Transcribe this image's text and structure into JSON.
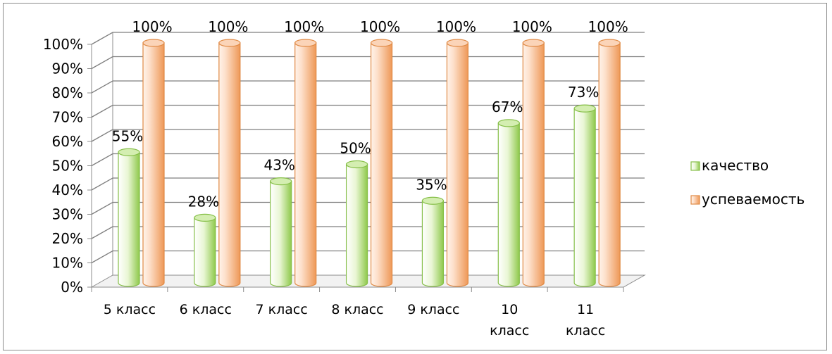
{
  "chart_data": {
    "type": "bar",
    "categories": [
      "5 класс",
      "6 класс",
      "7 класс",
      "8 класс",
      "9 класс",
      "10 класс",
      "11 класс"
    ],
    "category_lines": [
      [
        "5 класс"
      ],
      [
        "6 класс"
      ],
      [
        "7 класс"
      ],
      [
        "8 класс"
      ],
      [
        "9 класс"
      ],
      [
        "10",
        "класс"
      ],
      [
        "11",
        "класс"
      ]
    ],
    "series": [
      {
        "name": "качество",
        "values": [
          55,
          28,
          43,
          50,
          35,
          67,
          73
        ],
        "labels": [
          "55%",
          "28%",
          "43%",
          "50%",
          "35%",
          "67%",
          "73%"
        ],
        "color": "#9bd35a"
      },
      {
        "name": "успеваемость",
        "values": [
          100,
          100,
          100,
          100,
          100,
          100,
          100
        ],
        "labels": [
          "100%",
          "100%",
          "100%",
          "100%",
          "100%",
          "100%",
          "100%"
        ],
        "color": "#f4a36a"
      }
    ],
    "y_ticks": [
      0,
      10,
      20,
      30,
      40,
      50,
      60,
      70,
      80,
      90,
      100
    ],
    "y_tick_labels": [
      "0%",
      "10%",
      "20%",
      "30%",
      "40%",
      "50%",
      "60%",
      "70%",
      "80%",
      "90%",
      "100%"
    ],
    "ylim": [
      0,
      100
    ],
    "grid": true,
    "legend_position": "right",
    "title": "",
    "xlabel": "",
    "ylabel": ""
  }
}
